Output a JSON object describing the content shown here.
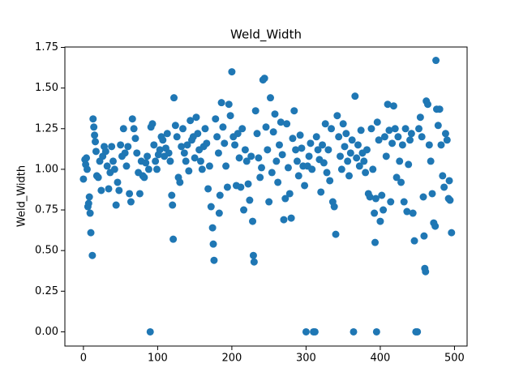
{
  "chart_data": {
    "type": "scatter",
    "title": "Weld_Width",
    "y_label": "Weld_Width",
    "color": "#1f77b4",
    "x": [
      0,
      2,
      3,
      4,
      5,
      6,
      7,
      8,
      9,
      10,
      12,
      13,
      14,
      15,
      16,
      17,
      18,
      20,
      22,
      24,
      26,
      28,
      30,
      32,
      34,
      36,
      38,
      40,
      42,
      44,
      46,
      48,
      50,
      52,
      54,
      56,
      58,
      60,
      62,
      64,
      66,
      68,
      70,
      72,
      74,
      76,
      78,
      80,
      82,
      84,
      86,
      88,
      90,
      91,
      93,
      95,
      97,
      99,
      101,
      103,
      105,
      107,
      109,
      111,
      113,
      115,
      117,
      119,
      120,
      121,
      122,
      124,
      126,
      128,
      130,
      132,
      134,
      136,
      138,
      140,
      142,
      144,
      146,
      148,
      150,
      152,
      154,
      156,
      158,
      160,
      162,
      164,
      166,
      168,
      170,
      172,
      174,
      175,
      176,
      178,
      180,
      182,
      183,
      184,
      186,
      188,
      190,
      192,
      194,
      196,
      198,
      200,
      202,
      204,
      206,
      208,
      210,
      212,
      214,
      216,
      218,
      220,
      222,
      224,
      226,
      228,
      229,
      230,
      232,
      234,
      236,
      238,
      240,
      242,
      244,
      246,
      248,
      250,
      252,
      254,
      256,
      258,
      260,
      262,
      264,
      266,
      268,
      270,
      272,
      274,
      276,
      278,
      280,
      282,
      284,
      286,
      288,
      290,
      292,
      294,
      296,
      298,
      300,
      302,
      304,
      306,
      308,
      310,
      312,
      314,
      316,
      318,
      320,
      322,
      324,
      326,
      328,
      330,
      332,
      334,
      336,
      338,
      340,
      342,
      344,
      346,
      348,
      350,
      352,
      354,
      356,
      358,
      360,
      362,
      364,
      366,
      368,
      370,
      372,
      374,
      376,
      378,
      380,
      382,
      384,
      386,
      388,
      390,
      392,
      393,
      394,
      395,
      396,
      398,
      400,
      402,
      404,
      406,
      408,
      410,
      412,
      414,
      416,
      418,
      420,
      422,
      424,
      426,
      428,
      430,
      432,
      434,
      436,
      438,
      440,
      442,
      444,
      446,
      448,
      450,
      452,
      454,
      456,
      458,
      459,
      460,
      461,
      462,
      464,
      466,
      468,
      470,
      472,
      474,
      475,
      476,
      478,
      480,
      482,
      484,
      486,
      488,
      490,
      492,
      493,
      494,
      496
    ],
    "values": [
      0.94,
      1.06,
      1.03,
      1.07,
      1.0,
      0.77,
      0.79,
      0.83,
      0.73,
      0.61,
      0.47,
      1.31,
      1.26,
      1.21,
      1.17,
      1.11,
      0.96,
      0.95,
      1.05,
      0.87,
      1.08,
      1.14,
      1.11,
      1.02,
      0.88,
      0.98,
      1.14,
      1.05,
      1.0,
      0.78,
      0.92,
      0.87,
      1.15,
      1.08,
      1.25,
      1.1,
      1.02,
      1.14,
      0.85,
      0.8,
      1.31,
      1.25,
      1.19,
      1.1,
      0.98,
      0.85,
      1.05,
      0.96,
      0.95,
      1.04,
      1.08,
      1.0,
      0.0,
      1.26,
      1.28,
      1.15,
      1.05,
      1.0,
      1.09,
      1.12,
      1.2,
      1.18,
      1.08,
      1.13,
      1.22,
      1.1,
      1.05,
      0.84,
      0.78,
      0.57,
      1.44,
      1.27,
      1.2,
      0.95,
      0.92,
      1.14,
      1.25,
      1.1,
      1.05,
      1.15,
      0.99,
      1.3,
      1.18,
      1.2,
      1.07,
      1.32,
      1.22,
      1.12,
      1.05,
      1.0,
      1.14,
      1.25,
      1.16,
      0.88,
      1.02,
      0.77,
      0.64,
      0.54,
      0.44,
      1.31,
      1.2,
      1.1,
      0.73,
      0.84,
      1.41,
      1.26,
      1.16,
      1.02,
      0.89,
      1.4,
      1.33,
      1.6,
      1.2,
      1.15,
      0.9,
      1.22,
      1.07,
      0.89,
      1.25,
      0.75,
      1.12,
      1.05,
      0.91,
      0.81,
      1.08,
      0.68,
      0.47,
      0.43,
      1.36,
      1.22,
      1.07,
      0.95,
      1.01,
      1.55,
      1.56,
      1.26,
      1.12,
      0.8,
      1.44,
      0.98,
      1.23,
      1.34,
      1.05,
      0.92,
      1.15,
      1.29,
      1.09,
      0.69,
      0.82,
      1.28,
      1.01,
      0.85,
      0.7,
      1.19,
      1.36,
      1.12,
      1.05,
      0.96,
      1.21,
      1.13,
      1.02,
      0.9,
      0.0,
      1.02,
      1.08,
      1.16,
      1.0,
      0.0,
      0.0,
      1.2,
      1.12,
      1.06,
      0.86,
      1.15,
      1.04,
      1.28,
      0.98,
      1.12,
      0.93,
      1.25,
      0.8,
      0.77,
      0.6,
      1.33,
      1.2,
      1.08,
      1.0,
      1.28,
      1.14,
      1.22,
      1.05,
      0.96,
      1.1,
      1.18,
      0.0,
      1.45,
      1.07,
      1.15,
      1.02,
      1.24,
      1.1,
      1.05,
      0.98,
      1.12,
      0.85,
      0.83,
      1.25,
      1.0,
      0.73,
      0.55,
      0.82,
      0.0,
      1.29,
      1.18,
      0.68,
      0.84,
      0.75,
      1.2,
      1.08,
      1.4,
      1.24,
      0.8,
      1.16,
      1.39,
      1.25,
      0.95,
      1.2,
      1.05,
      0.92,
      1.15,
      0.8,
      1.25,
      0.74,
      1.03,
      1.18,
      1.22,
      0.73,
      0.56,
      0.0,
      0.0,
      1.25,
      1.32,
      1.2,
      0.83,
      0.59,
      0.39,
      0.37,
      1.42,
      1.4,
      1.15,
      1.05,
      0.85,
      0.67,
      0.65,
      1.67,
      1.37,
      1.27,
      1.37,
      1.15,
      0.96,
      0.89,
      1.22,
      1.18,
      0.82,
      0.93,
      0.81,
      0.61
    ],
    "xlim": [
      -25,
      517
    ],
    "xticks": [
      0,
      100,
      200,
      300,
      400,
      500
    ],
    "ylim": [
      -0.0875,
      1.7525
    ],
    "yticks": [
      {
        "value": 0,
        "label": "0.00"
      },
      {
        "value": 0.25,
        "label": "0.25"
      },
      {
        "value": 0.5,
        "label": "0.50"
      },
      {
        "value": 0.75,
        "label": "0.75"
      },
      {
        "value": 1,
        "label": "1.00"
      },
      {
        "value": 1.25,
        "label": "1.25"
      },
      {
        "value": 1.5,
        "label": "1.50"
      },
      {
        "value": 1.75,
        "label": "1.75"
      }
    ]
  }
}
